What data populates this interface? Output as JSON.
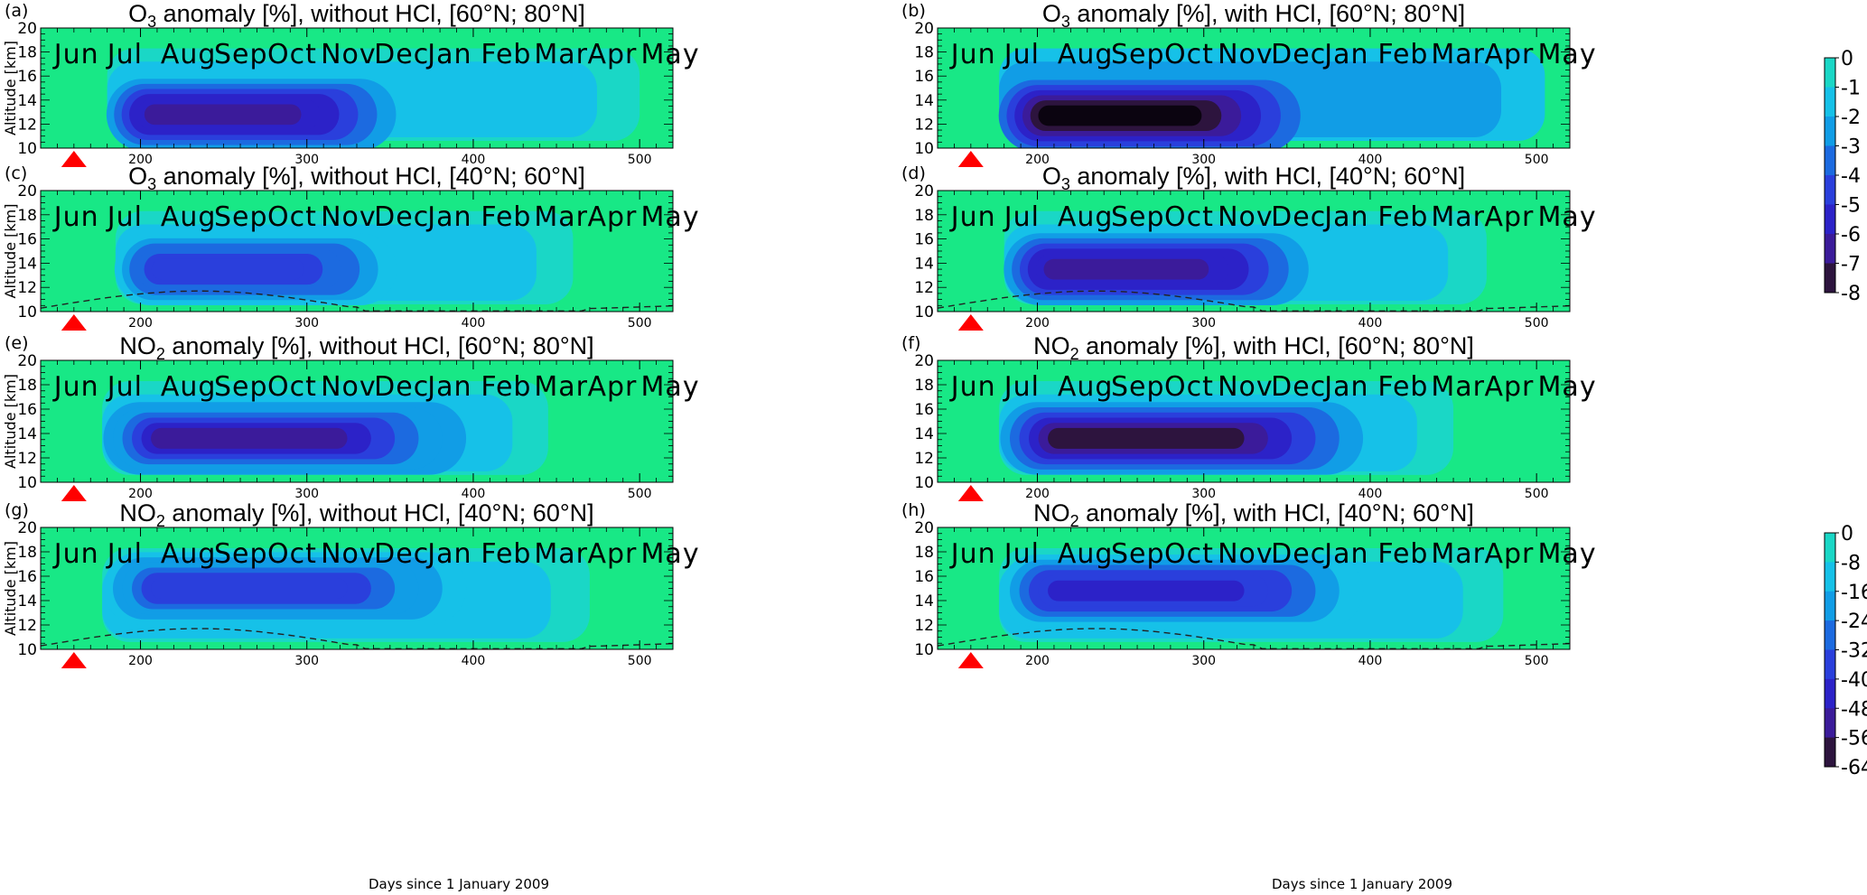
{
  "colors": {
    "o3_scale": [
      "#18e886",
      "#1ad7c6",
      "#16c1e8",
      "#119de6",
      "#1c6ae0",
      "#2a3fdc",
      "#2c22c8",
      "#3b1b9a",
      "#2d143e",
      "#0b0410"
    ],
    "no2_scale": [
      "#18e886",
      "#1ad7c6",
      "#16c1e8",
      "#119de6",
      "#1c6ae0",
      "#2a3fdc",
      "#2c22c8",
      "#3b1b9a",
      "#2d143e",
      "#0b0410"
    ],
    "event_marker": "#ff0000",
    "tropopause_line": "#222222"
  },
  "chart_data": [
    {
      "type": "heatmap",
      "panel_label": "(a)",
      "title_species": "O",
      "title_subscript": "3",
      "title_rest": " anomaly [%], without HCl, [60°N; 80°N]",
      "ylabel": "Altitude [km]",
      "ylim": [
        10,
        20
      ],
      "yticks": [
        10,
        12,
        14,
        16,
        18,
        20
      ],
      "xlim": [
        140,
        520
      ],
      "xticks": [
        200,
        300,
        400,
        500
      ],
      "month_labels": [
        "Jun",
        "Jul",
        "Aug",
        "Sep",
        "Oct",
        "Nov",
        "Dec",
        "Jan",
        "Feb",
        "Mar",
        "Apr",
        "May"
      ],
      "event_day": 160,
      "scale": "o3",
      "core": {
        "x0": 175,
        "x1": 365,
        "y_center": 12.8,
        "peak": -6.5
      },
      "tail": {
        "x1": 500,
        "level": -1.8
      },
      "tropopause": false
    },
    {
      "type": "heatmap",
      "panel_label": "(b)",
      "title_species": "O",
      "title_subscript": "3",
      "title_rest": " anomaly [%], with HCl, [60°N; 80°N]",
      "ylabel": "",
      "ylim": [
        10,
        20
      ],
      "yticks": [
        10,
        12,
        14,
        16,
        18,
        20
      ],
      "xlim": [
        140,
        520
      ],
      "xticks": [
        200,
        300,
        400,
        500
      ],
      "month_labels": [
        "Jun",
        "Jul",
        "Aug",
        "Sep",
        "Oct",
        "Nov",
        "Dec",
        "Jan",
        "Feb",
        "Mar",
        "Apr",
        "May"
      ],
      "event_day": 160,
      "scale": "o3",
      "core": {
        "x0": 172,
        "x1": 370,
        "y_center": 12.7,
        "peak": -7.6
      },
      "tail": {
        "x1": 505,
        "level": -2.3
      },
      "tropopause": false
    },
    {
      "type": "heatmap",
      "panel_label": "(c)",
      "title_species": "O",
      "title_subscript": "3",
      "title_rest": " anomaly [%], without HCl, [40°N; 60°N]",
      "ylabel": "Altitude [km]",
      "ylim": [
        10,
        20
      ],
      "yticks": [
        10,
        12,
        14,
        16,
        18,
        20
      ],
      "xlim": [
        140,
        520
      ],
      "xticks": [
        200,
        300,
        400,
        500
      ],
      "month_labels": [
        "Jun",
        "Jul",
        "Aug",
        "Sep",
        "Oct",
        "Nov",
        "Dec",
        "Jan",
        "Feb",
        "Mar",
        "Apr",
        "May"
      ],
      "event_day": 160,
      "scale": "o3",
      "core": {
        "x0": 180,
        "x1": 365,
        "y_center": 13.5,
        "peak": -4.8
      },
      "tail": {
        "x1": 460,
        "level": -1.6
      },
      "tropopause": true
    },
    {
      "type": "heatmap",
      "panel_label": "(d)",
      "title_species": "O",
      "title_subscript": "3",
      "title_rest": " anomaly [%], with HCl, [40°N; 60°N]",
      "ylabel": "",
      "ylim": [
        10,
        20
      ],
      "yticks": [
        10,
        12,
        14,
        16,
        18,
        20
      ],
      "xlim": [
        140,
        520
      ],
      "xticks": [
        200,
        300,
        400,
        500
      ],
      "month_labels": [
        "Jun",
        "Jul",
        "Aug",
        "Sep",
        "Oct",
        "Nov",
        "Dec",
        "Jan",
        "Feb",
        "Mar",
        "Apr",
        "May"
      ],
      "event_day": 160,
      "scale": "o3",
      "core": {
        "x0": 175,
        "x1": 375,
        "y_center": 13.5,
        "peak": -6.3
      },
      "tail": {
        "x1": 470,
        "level": -2.2
      },
      "tropopause": true
    },
    {
      "type": "heatmap",
      "panel_label": "(e)",
      "title_species": "NO",
      "title_subscript": "2",
      "title_rest": " anomaly [%], without HCl, [60°N; 80°N]",
      "ylabel": "Altitude [km]",
      "ylim": [
        10,
        20
      ],
      "yticks": [
        10,
        12,
        14,
        16,
        18,
        20
      ],
      "xlim": [
        140,
        520
      ],
      "xticks": [
        200,
        300,
        400,
        500
      ],
      "month_labels": [
        "Jun",
        "Jul",
        "Aug",
        "Sep",
        "Oct",
        "Nov",
        "Dec",
        "Jan",
        "Feb",
        "Mar",
        "Apr",
        "May"
      ],
      "event_day": 160,
      "scale": "no2",
      "core": {
        "x0": 172,
        "x1": 410,
        "y_center": 13.6,
        "peak": -48
      },
      "tail": {
        "x1": 445,
        "level": -12
      },
      "tropopause": false
    },
    {
      "type": "heatmap",
      "panel_label": "(f)",
      "title_species": "NO",
      "title_subscript": "2",
      "title_rest": " anomaly [%], with HCl, [60°N; 80°N]",
      "ylabel": "",
      "ylim": [
        10,
        20
      ],
      "yticks": [
        10,
        12,
        14,
        16,
        18,
        20
      ],
      "xlim": [
        140,
        520
      ],
      "xticks": [
        200,
        300,
        400,
        500
      ],
      "month_labels": [
        "Jun",
        "Jul",
        "Aug",
        "Sep",
        "Oct",
        "Nov",
        "Dec",
        "Jan",
        "Feb",
        "Mar",
        "Apr",
        "May"
      ],
      "event_day": 160,
      "scale": "no2",
      "core": {
        "x0": 172,
        "x1": 410,
        "y_center": 13.6,
        "peak": -56
      },
      "tail": {
        "x1": 450,
        "level": -13
      },
      "tropopause": false
    },
    {
      "type": "heatmap",
      "panel_label": "(g)",
      "title_species": "NO",
      "title_subscript": "2",
      "title_rest": " anomaly [%], without HCl, [40°N; 60°N]",
      "ylabel": "Altitude [km]",
      "ylim": [
        10,
        20
      ],
      "yticks": [
        10,
        12,
        14,
        16,
        18,
        20
      ],
      "xlim": [
        140,
        520
      ],
      "xticks": [
        200,
        300,
        400,
        500
      ],
      "month_labels": [
        "Jun",
        "Jul",
        "Aug",
        "Sep",
        "Oct",
        "Nov",
        "Dec",
        "Jan",
        "Feb",
        "Mar",
        "Apr",
        "May"
      ],
      "event_day": 160,
      "scale": "no2",
      "core": {
        "x0": 172,
        "x1": 410,
        "y_center": 15.0,
        "peak": -38
      },
      "tail": {
        "x1": 470,
        "level": -11
      },
      "tropopause": true
    },
    {
      "type": "heatmap",
      "panel_label": "(h)",
      "title_species": "NO",
      "title_subscript": "2",
      "title_rest": " anomaly [%], with HCl, [40°N; 60°N]",
      "ylabel": "",
      "ylim": [
        10,
        20
      ],
      "yticks": [
        10,
        12,
        14,
        16,
        18,
        20
      ],
      "xlim": [
        140,
        520
      ],
      "xticks": [
        200,
        300,
        400,
        500
      ],
      "month_labels": [
        "Jun",
        "Jul",
        "Aug",
        "Sep",
        "Oct",
        "Nov",
        "Dec",
        "Jan",
        "Feb",
        "Mar",
        "Apr",
        "May"
      ],
      "event_day": 160,
      "scale": "no2",
      "core": {
        "x0": 172,
        "x1": 410,
        "y_center": 14.8,
        "peak": -42
      },
      "tail": {
        "x1": 480,
        "level": -12
      },
      "tropopause": true
    }
  ],
  "xlabel": "Days since 1 January 2009",
  "colorbars": [
    {
      "name": "o3",
      "labels": [
        "0",
        "-1",
        "-2",
        "-3",
        "-4",
        "-5",
        "-6",
        "-7",
        "-8"
      ],
      "min": -8,
      "max": 0
    },
    {
      "name": "no2",
      "labels": [
        "0",
        "-8",
        "-16",
        "-24",
        "-32",
        "-40",
        "-48",
        "-56",
        "-64"
      ],
      "min": -64,
      "max": 0
    }
  ]
}
